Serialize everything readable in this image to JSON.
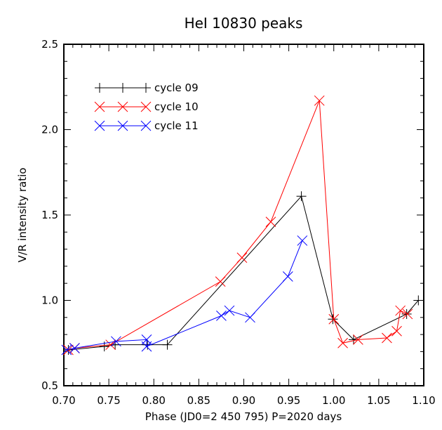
{
  "chart_data": {
    "type": "line",
    "title": "HeI 10830  peaks",
    "xlabel": "Phase (JD0=2 450 795)  P=2020 days",
    "ylabel": "V/R  intensity ratio",
    "xlim": [
      0.7,
      1.1
    ],
    "ylim": [
      0.5,
      2.5
    ],
    "x_ticks": [
      "0.70",
      "0.75",
      "0.80",
      "0.85",
      "0.90",
      "0.95",
      "1.00",
      "1.05",
      "1.10"
    ],
    "y_ticks": [
      "0.5",
      "1.0",
      "1.5",
      "2.0",
      "2.5"
    ],
    "grid": false,
    "legend_position": "top-left",
    "series": [
      {
        "name": "cycle 09",
        "color": "#000000",
        "marker": "plus",
        "x": [
          0.705,
          0.745,
          0.757,
          0.793,
          0.815,
          0.964,
          0.999,
          1.022,
          1.081,
          1.094
        ],
        "y": [
          0.71,
          0.73,
          0.74,
          0.74,
          0.74,
          1.61,
          0.89,
          0.77,
          0.92,
          1.0
        ]
      },
      {
        "name": "cycle 10",
        "color": "#ff0000",
        "marker": "x",
        "x": [
          0.705,
          0.712,
          0.752,
          0.874,
          0.898,
          0.93,
          0.984,
          1.0,
          1.01,
          1.027,
          1.059,
          1.07,
          1.074,
          1.082
        ],
        "y": [
          0.71,
          0.72,
          0.74,
          1.11,
          1.25,
          1.46,
          2.17,
          0.89,
          0.75,
          0.77,
          0.78,
          0.82,
          0.94,
          0.92
        ]
      },
      {
        "name": "cycle 11",
        "color": "#0000ff",
        "marker": "x",
        "x": [
          0.703,
          0.712,
          0.758,
          0.792,
          0.792,
          0.875,
          0.884,
          0.907,
          0.949,
          0.965
        ],
        "y": [
          0.71,
          0.72,
          0.76,
          0.77,
          0.73,
          0.91,
          0.94,
          0.9,
          1.14,
          1.35
        ]
      }
    ]
  }
}
